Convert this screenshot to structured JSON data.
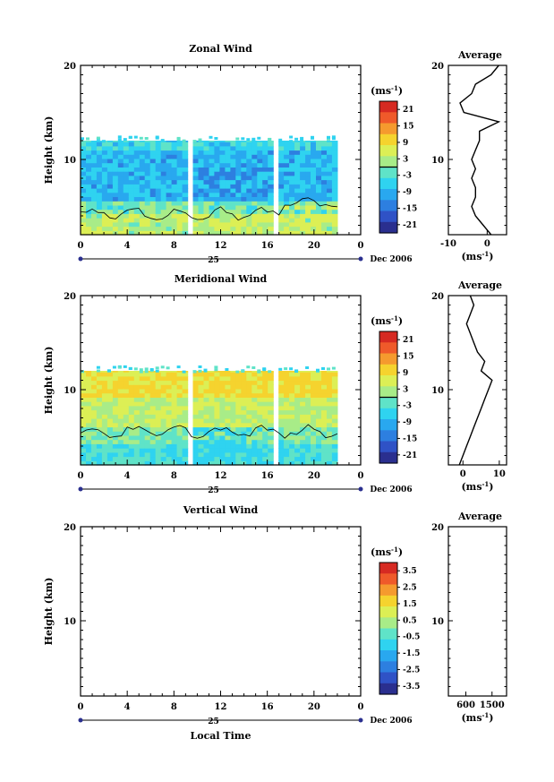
{
  "date_label": "Dec 2006",
  "day_label": "25",
  "xlabel": "Local Time",
  "unit": "(ms",
  "unit_exp": "-1",
  "unit_close": ")",
  "avg_title": "Average",
  "colors": [
    "#2a2f8f",
    "#2f52c6",
    "#2d7fe0",
    "#29a8ef",
    "#2fd3f0",
    "#5fe3c8",
    "#a8ec88",
    "#dcef55",
    "#f5d32e",
    "#f59a2e",
    "#ef5a2a",
    "#d62a22"
  ],
  "chart_data": [
    {
      "id": "zonal",
      "type": "heatmap",
      "title": "Zonal Wind",
      "ylabel": "Height (km)",
      "xlim": [
        0,
        24
      ],
      "ylim": [
        2,
        20
      ],
      "xticks": [
        "0",
        "4",
        "8",
        "12",
        "16",
        "20",
        "0"
      ],
      "yticks": [
        "20",
        "10"
      ],
      "colorbar": {
        "ticks": [
          "21",
          "15",
          "9",
          "3",
          "-3",
          "-9",
          "-15",
          "-21"
        ],
        "range": [
          -24,
          24
        ],
        "zero_line": 0
      },
      "data_gaps_hours": [
        9.3,
        16.6
      ],
      "data_top_km": 12.0,
      "profile": {
        "xlim": [
          -10,
          5
        ],
        "xticks": [
          "-10",
          "0"
        ],
        "heights": [
          2,
          3,
          4,
          5,
          6,
          7,
          8,
          9,
          10,
          11,
          12,
          13,
          14,
          15,
          16,
          17,
          18,
          19,
          20
        ],
        "values": [
          1,
          -1,
          -3,
          -4,
          -3,
          -3,
          -4,
          -3,
          -4,
          -3,
          -2,
          -2,
          3,
          -6,
          -7,
          -4,
          -3,
          1,
          3
        ]
      }
    },
    {
      "id": "meridional",
      "type": "heatmap",
      "title": "Meridional Wind",
      "ylabel": "Height (km)",
      "xlim": [
        0,
        24
      ],
      "ylim": [
        2,
        20
      ],
      "xticks": [
        "0",
        "4",
        "8",
        "12",
        "16",
        "20",
        "0"
      ],
      "yticks": [
        "20",
        "10"
      ],
      "colorbar": {
        "ticks": [
          "21",
          "15",
          "9",
          "3",
          "-3",
          "-9",
          "-15",
          "-21"
        ],
        "range": [
          -24,
          24
        ],
        "zero_line": 0
      },
      "data_gaps_hours": [
        9.3,
        16.6
      ],
      "data_top_km": 12.0,
      "profile": {
        "xlim": [
          -4,
          12
        ],
        "xticks": [
          "0",
          "10"
        ],
        "heights": [
          2,
          3,
          4,
          5,
          6,
          7,
          8,
          9,
          10,
          11,
          12,
          13,
          14,
          15,
          16,
          17,
          18,
          19,
          20
        ],
        "values": [
          -1,
          0,
          1,
          2,
          3,
          4,
          5,
          6,
          7,
          8,
          5,
          6,
          4,
          3,
          2,
          1,
          2,
          3,
          2
        ]
      }
    },
    {
      "id": "vertical",
      "type": "heatmap",
      "title": "Vertical Wind",
      "ylabel": "Height (km)",
      "xlim": [
        0,
        24
      ],
      "ylim": [
        2,
        20
      ],
      "xticks": [
        "0",
        "4",
        "8",
        "12",
        "16",
        "20",
        "0"
      ],
      "yticks": [
        "20",
        "10"
      ],
      "colorbar": {
        "ticks": [
          "3.5",
          "2.5",
          "1.5",
          "0.5",
          "-0.5",
          "-1.5",
          "-2.5",
          "-3.5"
        ],
        "range": [
          -4,
          4
        ],
        "zero_line": null
      },
      "profile": {
        "xlim": [
          0,
          2000
        ],
        "xticks": [
          "600",
          "1500"
        ],
        "heights": [],
        "values": []
      }
    }
  ]
}
